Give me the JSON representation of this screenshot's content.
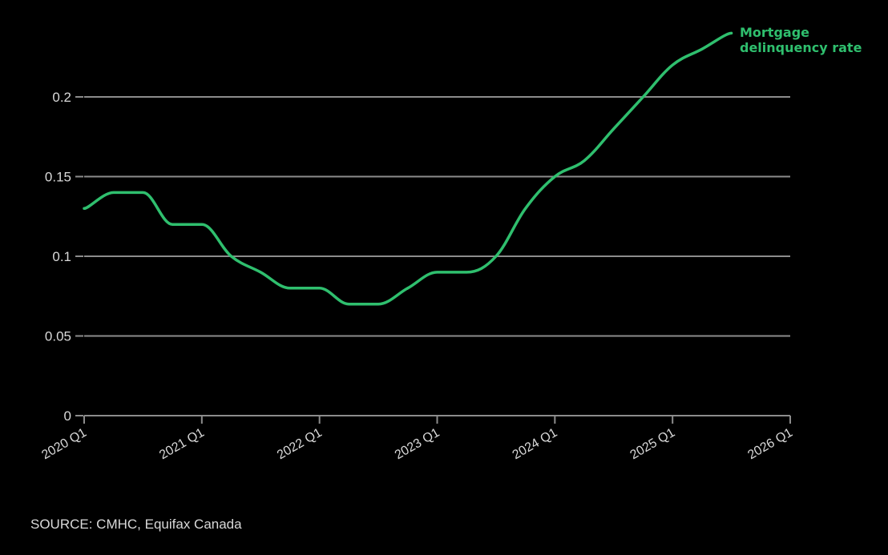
{
  "chart_data": {
    "type": "line",
    "title": "",
    "xlabel": "",
    "ylabel": "",
    "x": [
      "2020 Q1",
      "2020 Q2",
      "2020 Q3",
      "2020 Q4",
      "2021 Q1",
      "2021 Q2",
      "2021 Q3",
      "2021 Q4",
      "2022 Q1",
      "2022 Q2",
      "2022 Q3",
      "2022 Q4",
      "2023 Q1",
      "2023 Q2",
      "2023 Q3",
      "2023 Q4",
      "2024 Q1",
      "2024 Q2",
      "2024 Q3",
      "2024 Q4",
      "2025 Q1",
      "2025 Q2",
      "2025 Q3"
    ],
    "series": [
      {
        "name": "Mortgage delinquency rate",
        "color": "#2fbf6e",
        "values": [
          0.13,
          0.14,
          0.14,
          0.12,
          0.12,
          0.1,
          0.09,
          0.08,
          0.08,
          0.07,
          0.07,
          0.08,
          0.09,
          0.09,
          0.1,
          0.13,
          0.15,
          0.16,
          0.18,
          0.2,
          0.22,
          0.23,
          0.24
        ]
      }
    ],
    "xticks": [
      "2020 Q1",
      "2021 Q1",
      "2022 Q1",
      "2023 Q1",
      "2024 Q1",
      "2025 Q1",
      "2026 Q1"
    ],
    "yticks": [
      0,
      0.05,
      0.1,
      0.15,
      0.2
    ],
    "ytick_labels": [
      "0",
      "0.05",
      "0.1",
      "0.15",
      "0.2"
    ],
    "ylim": [
      0,
      0.25
    ],
    "xlim": [
      "2020 Q1",
      "2026 Q1"
    ],
    "grid": "horizontal",
    "legend": "direct label at line end",
    "annotations": [
      "Mortgage delinquency rate"
    ],
    "source": "SOURCE: CMHC, Equifax Canada"
  },
  "labels": {
    "series_label_line1": "Mortgage",
    "series_label_line2": "delinquency rate",
    "source": "SOURCE: CMHC, Equifax Canada"
  },
  "colors": {
    "background": "#000000",
    "line": "#2fbf6e",
    "grid": "#8c8c8c",
    "text": "#d9d9d9"
  }
}
